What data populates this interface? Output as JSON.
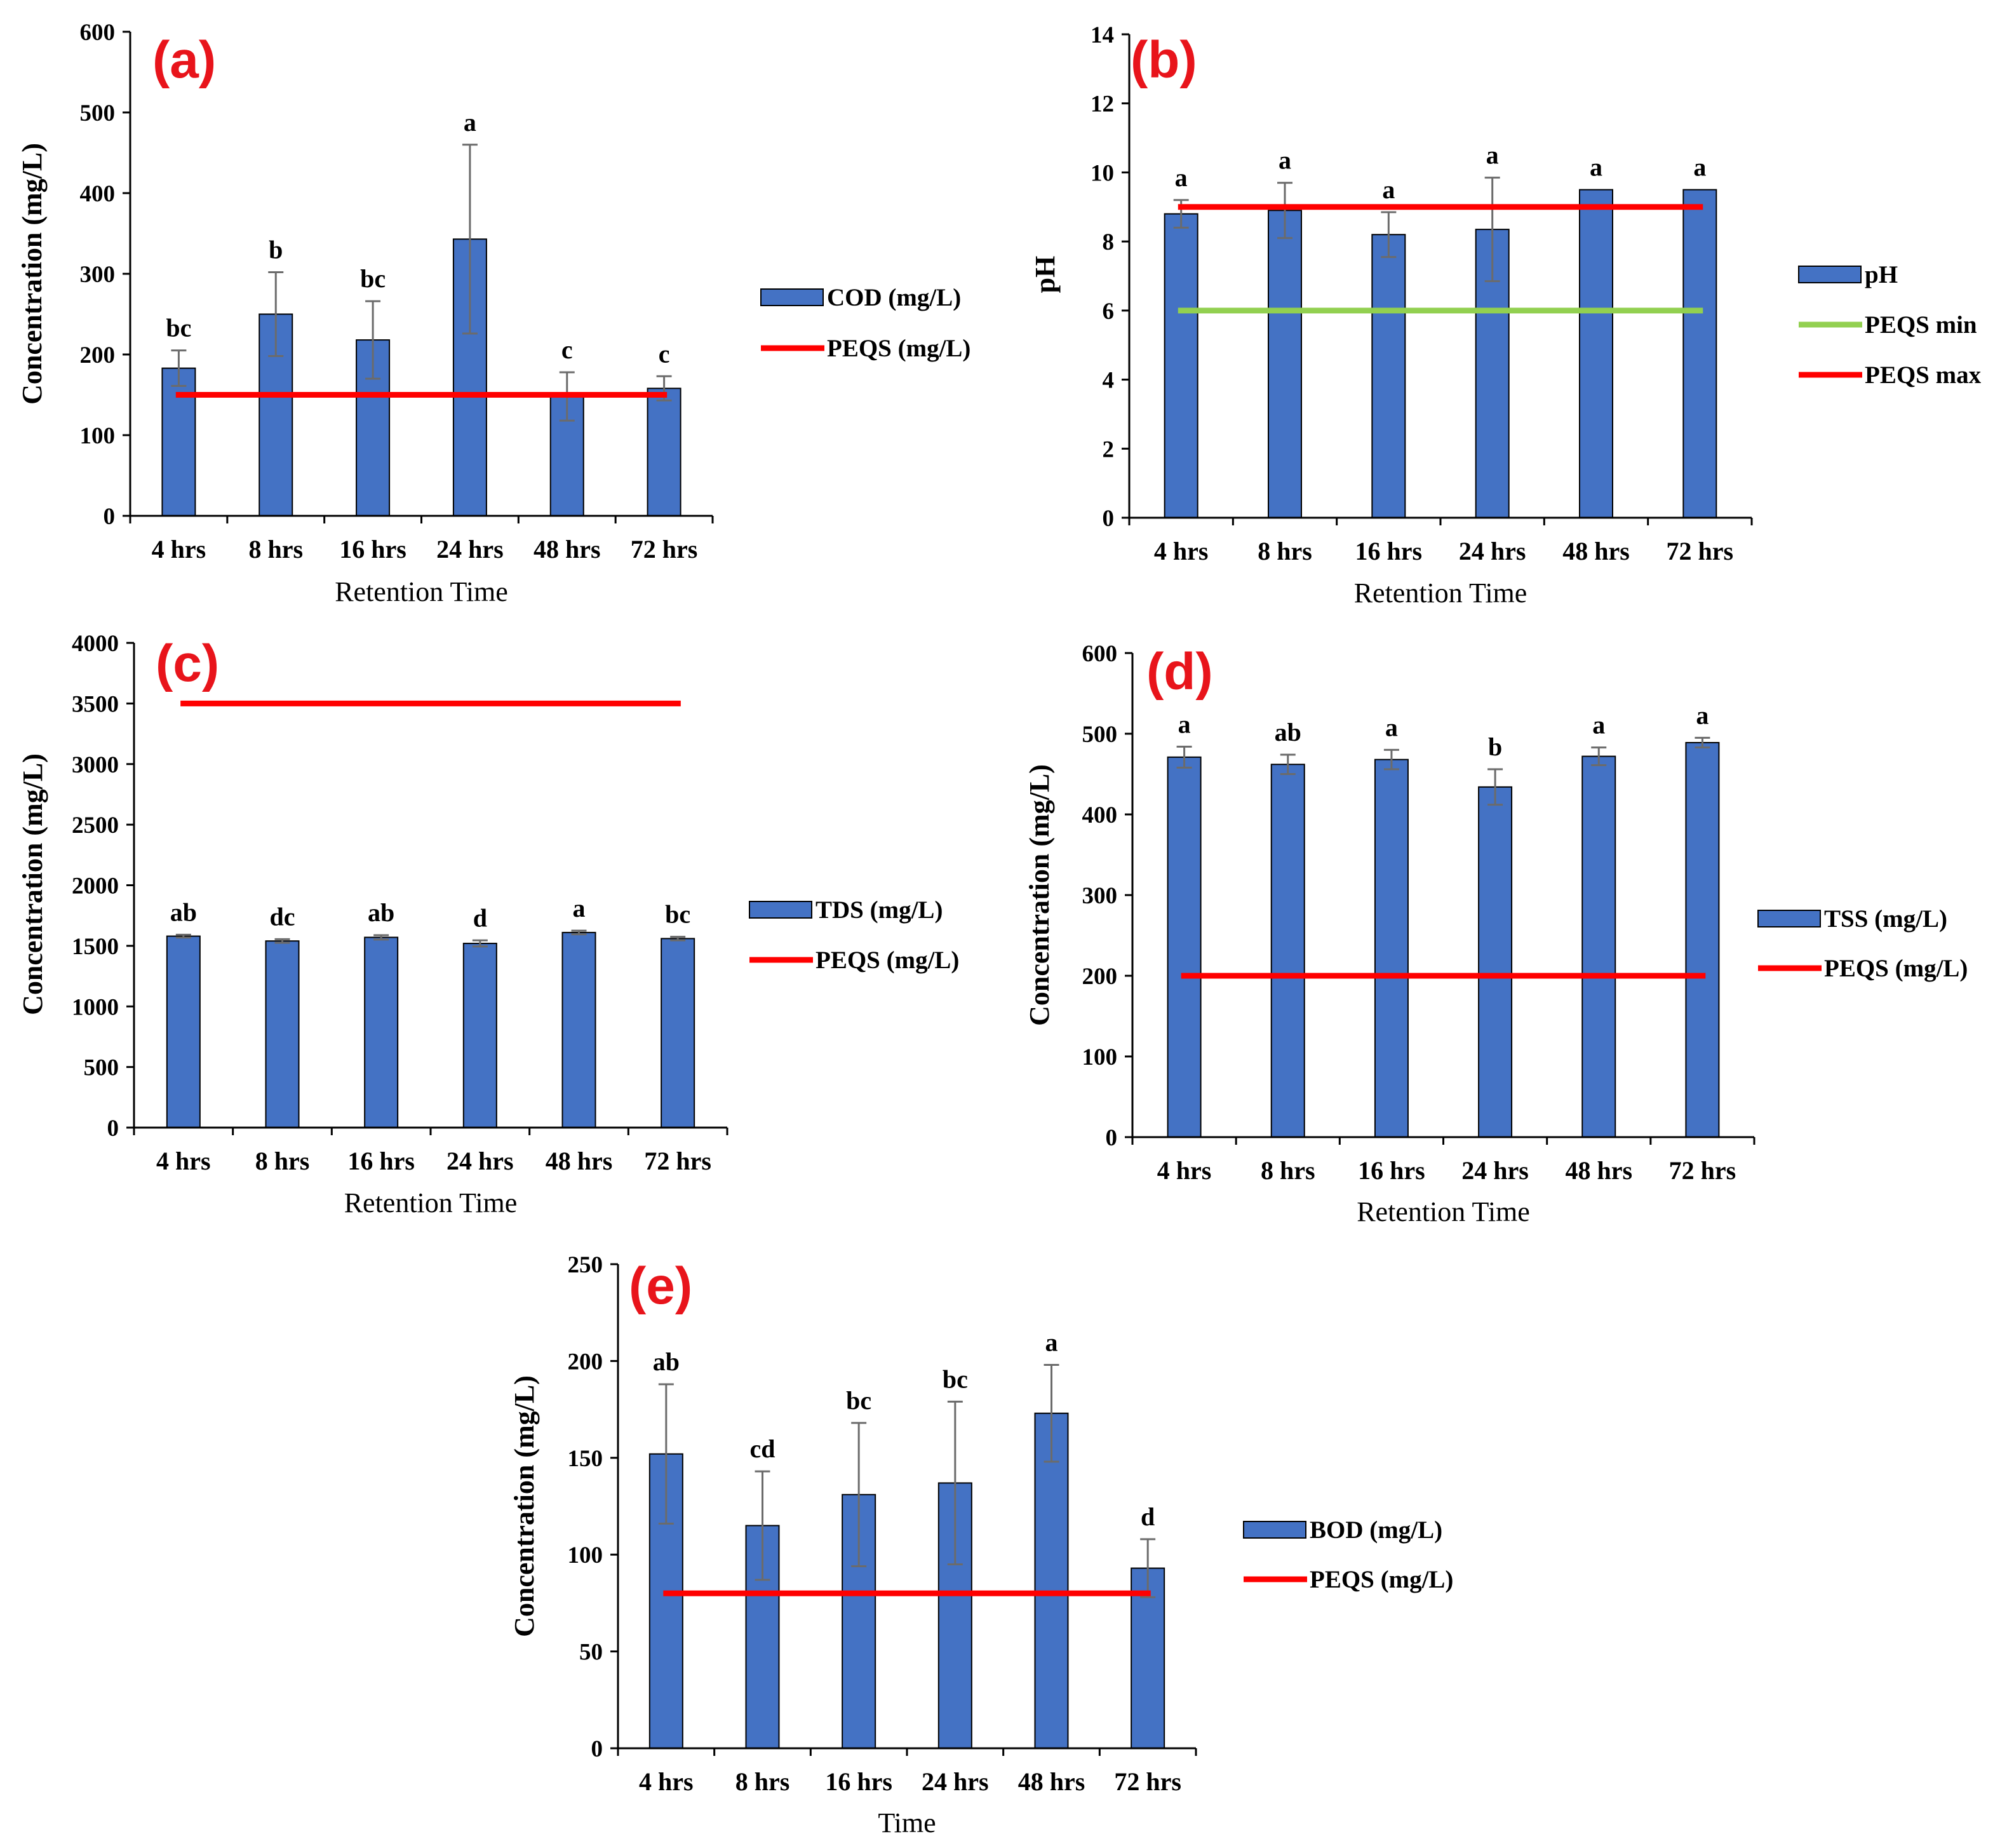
{
  "chart_data": [
    {
      "type": "bar",
      "panel_label": "(a)",
      "categories": [
        "4 hrs",
        "8 hrs",
        "16 hrs",
        "24 hrs",
        "48 hrs",
        "72 hrs"
      ],
      "series": [
        {
          "name": "COD (mg/L)",
          "values": [
            183,
            250,
            218,
            343,
            148,
            158
          ],
          "errors": [
            22,
            52,
            48,
            117,
            30,
            15
          ],
          "color": "#4472c4"
        }
      ],
      "significance": [
        "bc",
        "b",
        "bc",
        "a",
        "c",
        "c"
      ],
      "reference_lines": [
        {
          "name": "PEQS (mg/L)",
          "value": 150,
          "color": "#ff0000"
        }
      ],
      "xlabel": "Retention Time",
      "ylabel": "Concentration (mg/L)",
      "ylim": [
        0,
        600
      ],
      "yticks": [
        0,
        100,
        200,
        300,
        400,
        500,
        600
      ],
      "legend_position": "right"
    },
    {
      "type": "bar",
      "panel_label": "(b)",
      "categories": [
        "4 hrs",
        "8 hrs",
        "16 hrs",
        "24 hrs",
        "48 hrs",
        "72 hrs"
      ],
      "series": [
        {
          "name": "pH",
          "values": [
            8.8,
            8.9,
            8.2,
            8.35,
            9.5,
            9.5
          ],
          "errors": [
            0.4,
            0.8,
            0.65,
            1.5,
            0,
            0
          ],
          "color": "#4472c4"
        }
      ],
      "significance": [
        "a",
        "a",
        "a",
        "a",
        "a",
        "a"
      ],
      "reference_lines": [
        {
          "name": "PEQS min",
          "value": 6,
          "color": "#92d050"
        },
        {
          "name": "PEQS max",
          "value": 9,
          "color": "#ff0000"
        }
      ],
      "xlabel": "Retention Time",
      "ylabel": "pH",
      "ylim": [
        0,
        14
      ],
      "yticks": [
        0,
        2,
        4,
        6,
        8,
        10,
        12,
        14
      ],
      "legend_position": "right"
    },
    {
      "type": "bar",
      "panel_label": "(c)",
      "categories": [
        "4 hrs",
        "8 hrs",
        "16 hrs",
        "24 hrs",
        "48 hrs",
        "72 hrs"
      ],
      "series": [
        {
          "name": "TDS (mg/L)",
          "values": [
            1580,
            1540,
            1570,
            1520,
            1610,
            1560
          ],
          "errors": [
            12,
            15,
            18,
            25,
            15,
            15
          ],
          "color": "#4472c4"
        }
      ],
      "significance": [
        "ab",
        "dc",
        "ab",
        "d",
        "a",
        "bc"
      ],
      "reference_lines": [
        {
          "name": "PEQS (mg/L)",
          "value": 3500,
          "color": "#ff0000"
        }
      ],
      "xlabel": "Retention Time",
      "ylabel": "Concentration (mg/L)",
      "ylim": [
        0,
        4000
      ],
      "yticks": [
        0,
        500,
        1000,
        1500,
        2000,
        2500,
        3000,
        3500,
        4000
      ],
      "legend_position": "right"
    },
    {
      "type": "bar",
      "panel_label": "(d)",
      "categories": [
        "4 hrs",
        "8 hrs",
        "16 hrs",
        "24 hrs",
        "48 hrs",
        "72 hrs"
      ],
      "series": [
        {
          "name": "TSS (mg/L)",
          "values": [
            471,
            462,
            468,
            434,
            472,
            489
          ],
          "errors": [
            13,
            12,
            12,
            22,
            11,
            6
          ],
          "color": "#4472c4"
        }
      ],
      "significance": [
        "a",
        "ab",
        "a",
        "b",
        "a",
        "a"
      ],
      "reference_lines": [
        {
          "name": "PEQS (mg/L)",
          "value": 200,
          "color": "#ff0000"
        }
      ],
      "xlabel": "Retention Time",
      "ylabel": "Concentration (mg/L)",
      "ylim": [
        0,
        600
      ],
      "yticks": [
        0,
        100,
        200,
        300,
        400,
        500,
        600
      ],
      "legend_position": "right"
    },
    {
      "type": "bar",
      "panel_label": "(e)",
      "categories": [
        "4 hrs",
        "8 hrs",
        "16 hrs",
        "24 hrs",
        "48 hrs",
        "72 hrs"
      ],
      "series": [
        {
          "name": "BOD (mg/L)",
          "values": [
            152,
            115,
            131,
            137,
            173,
            93
          ],
          "errors": [
            36,
            28,
            37,
            42,
            25,
            15
          ],
          "color": "#4472c4"
        }
      ],
      "significance": [
        "ab",
        "cd",
        "bc",
        "bc",
        "a",
        "d"
      ],
      "reference_lines": [
        {
          "name": "PEQS (mg/L)",
          "value": 80,
          "color": "#ff0000"
        }
      ],
      "xlabel": "Time",
      "ylabel": "Concentration (mg/L)",
      "ylim": [
        0,
        250
      ],
      "yticks": [
        0,
        50,
        100,
        150,
        200,
        250
      ],
      "legend_position": "right"
    }
  ]
}
